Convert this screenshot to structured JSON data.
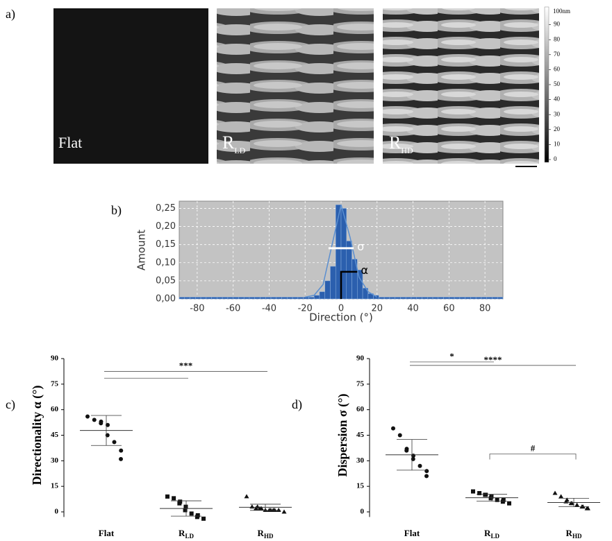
{
  "figure": {
    "panel_label": "a)",
    "images": [
      {
        "text": "Flat"
      },
      {
        "text": "R",
        "sub": "LD"
      },
      {
        "text": "R",
        "sub": "HD"
      }
    ],
    "colorbar": {
      "top_label": "100nm",
      "ticks": [
        0,
        10,
        20,
        30,
        40,
        50,
        60,
        70,
        80,
        90
      ]
    }
  },
  "chart_data": [
    {
      "type": "histogram",
      "label": "b)",
      "x_label": "Direction (°)",
      "y_label": "Amount",
      "bins": [
        -90,
        -87,
        -84,
        -81,
        -78,
        -75,
        -72,
        -69,
        -66,
        -63,
        -60,
        -57,
        -54,
        -51,
        -48,
        -45,
        -42,
        -39,
        -36,
        -33,
        -30,
        -27,
        -24,
        -21,
        -18,
        -15,
        -12,
        -9,
        -6,
        -3,
        0,
        3,
        6,
        9,
        12,
        15,
        18,
        21,
        24,
        27,
        30,
        33,
        36,
        39,
        42,
        45,
        48,
        51,
        54,
        57,
        60,
        63,
        66,
        69,
        72,
        75,
        78,
        81,
        84,
        87,
        90
      ],
      "counts": [
        0.005,
        0.005,
        0.005,
        0.005,
        0.005,
        0.005,
        0.005,
        0.005,
        0.005,
        0.005,
        0.005,
        0.005,
        0.005,
        0.005,
        0.005,
        0.005,
        0.005,
        0.005,
        0.005,
        0.005,
        0.005,
        0.005,
        0.005,
        0.005,
        0.005,
        0.01,
        0.02,
        0.05,
        0.09,
        0.26,
        0.25,
        0.16,
        0.11,
        0.08,
        0.03,
        0.015,
        0.01,
        0.005,
        0.005,
        0.005,
        0.005,
        0.005,
        0.005,
        0.005,
        0.005,
        0.005,
        0.005,
        0.005,
        0.005,
        0.005,
        0.005,
        0.005,
        0.005,
        0.005,
        0.005,
        0.005,
        0.005,
        0.005,
        0.005,
        0.005
      ],
      "color": "#2b5fae",
      "fit": {
        "x": [
          -20,
          -15,
          -10,
          -5,
          0,
          5,
          10,
          15,
          20
        ],
        "values": [
          0.005,
          0.01,
          0.04,
          0.15,
          0.26,
          0.17,
          0.06,
          0.02,
          0.005
        ],
        "color": "#5b8fd0"
      },
      "annotations": [
        {
          "text": "σ",
          "color": "#ffffff"
        },
        {
          "text": "α",
          "color": "#000000"
        }
      ],
      "xlim": [
        -90,
        90
      ],
      "ylim": [
        0,
        0.27
      ],
      "xticks": [
        -80,
        -60,
        -40,
        -20,
        0,
        20,
        40,
        60,
        80
      ],
      "yticks": [
        {
          "value": 0,
          "label": "0,00"
        },
        {
          "value": 0.05,
          "label": "0,05"
        },
        {
          "value": 0.1,
          "label": "0,10"
        },
        {
          "value": 0.15,
          "label": "0,15"
        },
        {
          "value": 0.2,
          "label": "0,20"
        },
        {
          "value": 0.25,
          "label": "0,25"
        }
      ],
      "grid": true
    },
    {
      "type": "scatter",
      "label": "c)",
      "y_label": "Directionality α (°)",
      "ylim": [
        -3,
        90
      ],
      "yticks": [
        0,
        15,
        30,
        45,
        60,
        75,
        90
      ],
      "groups": [
        {
          "category": {
            "text": "Flat"
          },
          "marker": "circle",
          "values": [
            56,
            54,
            53,
            52,
            51,
            45,
            41,
            36,
            31
          ],
          "mean": 47.8,
          "sd": 8.8
        },
        {
          "category": {
            "text": "R",
            "sub": "LD"
          },
          "marker": "square",
          "values": [
            9,
            8,
            6,
            5,
            3,
            1,
            -1,
            -2,
            -3,
            -4
          ],
          "mean": 2,
          "sd": 4.5
        },
        {
          "category": {
            "text": "R",
            "sub": "HD"
          },
          "marker": "triangle",
          "values": [
            9,
            3,
            3,
            2,
            2,
            2,
            1,
            1,
            1,
            1,
            1,
            1,
            0
          ],
          "mean": 2.7,
          "sd": 1.8
        }
      ],
      "brackets": [
        {
          "label": "***",
          "from": 0,
          "to": 2,
          "y": 82.5
        },
        {
          "from": 0,
          "to": 1,
          "y": 78.5
        }
      ]
    },
    {
      "type": "scatter",
      "label": "d)",
      "y_label": "Dispersion σ (°)",
      "ylim": [
        -3,
        90
      ],
      "yticks": [
        0,
        15,
        30,
        45,
        60,
        75,
        90
      ],
      "groups": [
        {
          "category": {
            "text": "Flat"
          },
          "marker": "circle",
          "values": [
            49,
            45,
            37,
            36,
            33,
            31,
            27,
            24,
            21
          ],
          "mean": 33.5,
          "sd": 9
        },
        {
          "category": {
            "text": "R",
            "sub": "LD"
          },
          "marker": "square",
          "values": [
            12,
            11,
            10,
            10,
            9,
            8,
            7,
            7,
            6,
            5
          ],
          "mean": 8.3,
          "sd": 2
        },
        {
          "category": {
            "text": "R",
            "sub": "HD"
          },
          "marker": "triangle",
          "values": [
            11,
            9,
            7,
            6,
            5,
            5,
            4,
            3,
            3,
            2,
            2
          ],
          "mean": 5.5,
          "sd": 2.5
        }
      ],
      "brackets": [
        {
          "label": "*",
          "from": 0,
          "to": 1,
          "y": 88
        },
        {
          "label": "****",
          "from": 0,
          "to": 2,
          "y": 86
        },
        {
          "label": "#",
          "from": 1,
          "to": 2,
          "y": 34
        }
      ]
    }
  ]
}
